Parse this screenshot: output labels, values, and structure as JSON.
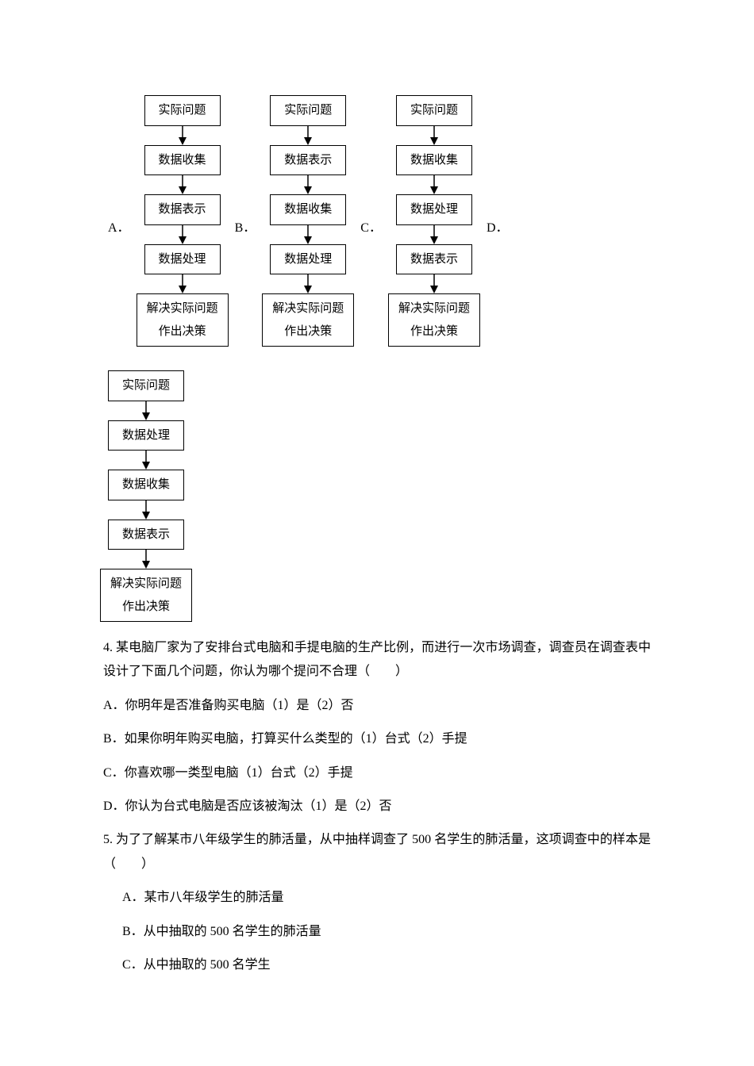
{
  "flowcharts": {
    "steps_a": [
      "实际问题",
      "数据收集",
      "数据表示",
      "数据处理",
      "解决实际问题\n作出决策"
    ],
    "steps_b": [
      "实际问题",
      "数据表示",
      "数据收集",
      "数据处理",
      "解决实际问题\n作出决策"
    ],
    "steps_c": [
      "实际问题",
      "数据收集",
      "数据处理",
      "数据表示",
      "解决实际问题\n作出决策"
    ],
    "steps_d": [
      "实际问题",
      "数据处理",
      "数据收集",
      "数据表示",
      "解决实际问题\n作出决策"
    ],
    "labels": {
      "a": "A．",
      "b": "B．",
      "c": "C．",
      "d": "D．"
    }
  },
  "q4": {
    "stem": "4. 某电脑厂家为了安排台式电脑和手提电脑的生产比例，而进行一次市场调查，调查员在调查表中设计了下面几个问题，你认为哪个提问不合理（　　）",
    "a": "A．你明年是否准备购买电脑（1）是（2）否",
    "b": "B．如果你明年购买电脑，打算买什么类型的（1）台式（2）手提",
    "c": "C．你喜欢哪一类型电脑（1）台式（2）手提",
    "d": "D．你认为台式电脑是否应该被淘汰（1）是（2）否"
  },
  "q5": {
    "stem": "5. 为了了解某市八年级学生的肺活量，从中抽样调查了 500 名学生的肺活量，这项调查中的样本是（　　）",
    "a": "A．某市八年级学生的肺活量",
    "b": "B．从中抽取的 500 名学生的肺活量",
    "c": "C．从中抽取的 500 名学生"
  },
  "style": {
    "arrow_color": "#000000",
    "box_border_color": "#000000"
  }
}
